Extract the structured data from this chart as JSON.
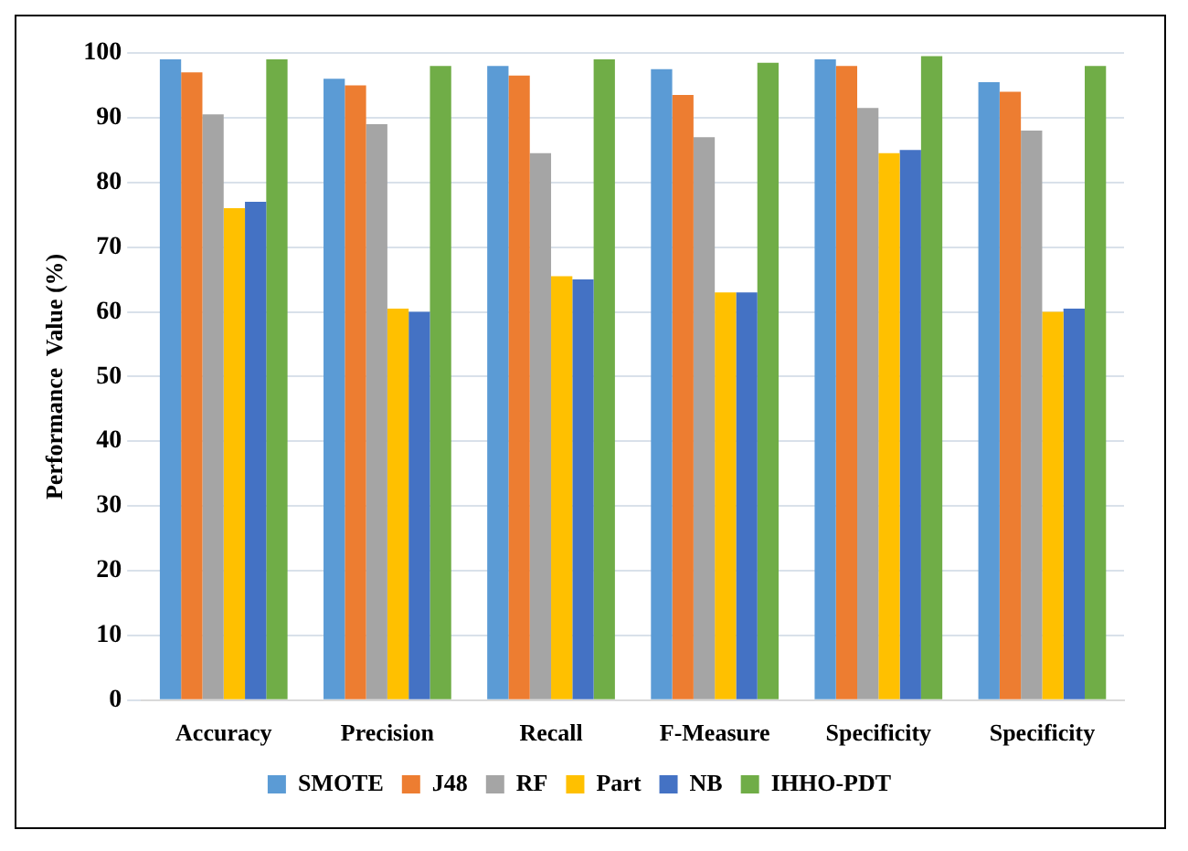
{
  "chart_data": {
    "type": "bar",
    "ylabel": "Performance  Value (%)",
    "categories": [
      "Accuracy",
      "Precision",
      "Recall",
      "F-Measure",
      "Specificity",
      "Specificity"
    ],
    "series": [
      {
        "name": "SMOTE",
        "color": "#5b9bd5",
        "values": [
          99,
          96,
          98,
          97.5,
          99,
          95.5
        ]
      },
      {
        "name": "J48",
        "color": "#ed7d31",
        "values": [
          97,
          95,
          96.5,
          93.5,
          98,
          94
        ]
      },
      {
        "name": "RF",
        "color": "#a5a5a5",
        "values": [
          90.5,
          89,
          84.5,
          87,
          91.5,
          88
        ]
      },
      {
        "name": "Part",
        "color": "#ffc000",
        "values": [
          76,
          60.5,
          65.5,
          63,
          84.5,
          60
        ]
      },
      {
        "name": "NB",
        "color": "#4472c4",
        "values": [
          77,
          60,
          65,
          63,
          85,
          60.5
        ]
      },
      {
        "name": "IHHO-PDT",
        "color": "#70ad47",
        "values": [
          99,
          98,
          99,
          98.5,
          99.5,
          98
        ]
      }
    ],
    "ylim": [
      0,
      100
    ],
    "yticks": [
      0,
      10,
      20,
      30,
      40,
      50,
      60,
      70,
      80,
      90,
      100
    ],
    "grid": "y",
    "legend": "bottom"
  }
}
